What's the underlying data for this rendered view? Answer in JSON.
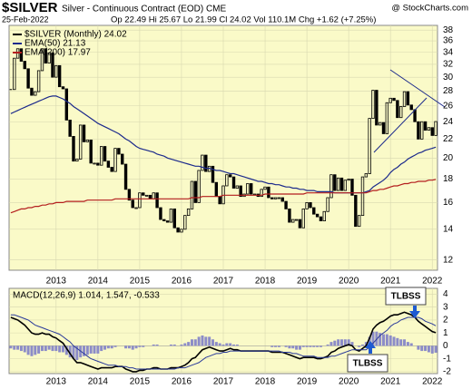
{
  "chart_data": [
    {
      "type": "candlestick",
      "title": "$SILVER",
      "subtitle": "Silver - Continuous Contract (EOD) CME",
      "date": "25-Feb-2022",
      "quote": "Op 22.49 Hi 25.67 Lo 21.99 Cl 24.02 Vol 110.1M Chg +1.62 (+7.25%)",
      "credit": "@ StockCharts.com",
      "log_scale": true,
      "ylim": [
        11.4,
        38.9
      ],
      "yticks": [
        12,
        14,
        16,
        18,
        20,
        22,
        24,
        26,
        28,
        30,
        32,
        34,
        36,
        38
      ],
      "categories": [
        null,
        null,
        null,
        null,
        null,
        null,
        null,
        null,
        null,
        null,
        null,
        null,
        null,
        "2013",
        null,
        null,
        null,
        null,
        null,
        null,
        null,
        null,
        null,
        null,
        null,
        "2014",
        null,
        null,
        null,
        null,
        null,
        null,
        null,
        null,
        null,
        null,
        null,
        "2015",
        null,
        null,
        null,
        null,
        null,
        null,
        null,
        null,
        null,
        null,
        null,
        "2016",
        null,
        null,
        null,
        null,
        null,
        null,
        null,
        null,
        null,
        null,
        null,
        "2017",
        null,
        null,
        null,
        null,
        null,
        null,
        null,
        null,
        null,
        null,
        null,
        "2018",
        null,
        null,
        null,
        null,
        null,
        null,
        null,
        null,
        null,
        null,
        null,
        "2019",
        null,
        null,
        null,
        null,
        null,
        null,
        null,
        null,
        null,
        null,
        null,
        "2020",
        null,
        null,
        null,
        null,
        null,
        null,
        null,
        null,
        null,
        null,
        null,
        "2021",
        null,
        null,
        null,
        null,
        null,
        null,
        null,
        null,
        null,
        null,
        null,
        "2022",
        null
      ],
      "series": [
        {
          "name": "$SILVER (Monthly) 24.02",
          "color": "#000000",
          "values": [
            28.2,
            33.0,
            34.6,
            32.5,
            31.3,
            28.4,
            27.4,
            27.9,
            31.0,
            34.6,
            32.2,
            33.9,
            30.0,
            31.8,
            28.6,
            28.3,
            24.2,
            22.3,
            19.7,
            19.9,
            23.6,
            21.7,
            21.9,
            19.5,
            19.5,
            19.3,
            21.2,
            19.7,
            19.1,
            18.7,
            21.0,
            20.4,
            19.4,
            17.1,
            16.2,
            15.6,
            15.6,
            16.8,
            16.6,
            16.6,
            16.3,
            16.8,
            15.6,
            14.7,
            14.6,
            14.5,
            15.5,
            14.1,
            13.8,
            14.0,
            15.0,
            15.5,
            17.8,
            16.0,
            18.8,
            20.3,
            18.7,
            19.2,
            17.7,
            16.5,
            15.9,
            17.4,
            18.4,
            18.2,
            17.2,
            17.4,
            16.5,
            16.7,
            17.6,
            16.7,
            16.7,
            16.5,
            17.1,
            17.3,
            16.4,
            16.3,
            16.4,
            16.4,
            16.1,
            15.5,
            14.5,
            14.7,
            14.7,
            14.1,
            15.5,
            16.0,
            15.6,
            15.1,
            14.9,
            14.6,
            15.3,
            16.4,
            18.4,
            17.0,
            18.1,
            17.0,
            17.9,
            18.0,
            16.6,
            14.2,
            15.0,
            18.2,
            18.5,
            24.4,
            28.1,
            23.6,
            23.9,
            22.6,
            26.4,
            27.0,
            26.7,
            24.5,
            25.9,
            27.9,
            26.1,
            25.5,
            24.0,
            22.0,
            24.0,
            23.0,
            23.3,
            22.4,
            24.02
          ]
        },
        {
          "name": "EMA(50) 21.13",
          "color": "#1c2a8c",
          "values": [
            25.0,
            25.2,
            25.4,
            25.6,
            25.8,
            26.0,
            26.2,
            26.4,
            26.6,
            26.8,
            27.0,
            27.2,
            27.3,
            27.3,
            27.1,
            26.9,
            26.6,
            26.3,
            25.9,
            25.6,
            25.3,
            25.0,
            24.7,
            24.4,
            24.1,
            23.8,
            23.6,
            23.4,
            23.2,
            23.0,
            22.8,
            22.6,
            22.3,
            22.0,
            21.8,
            21.5,
            21.2,
            21.0,
            20.9,
            20.8,
            20.7,
            20.6,
            20.4,
            20.3,
            20.2,
            20.0,
            19.9,
            19.8,
            19.7,
            19.6,
            19.5,
            19.4,
            19.3,
            19.2,
            19.2,
            19.1,
            19.0,
            19.0,
            18.9,
            18.8,
            18.8,
            18.7,
            18.6,
            18.5,
            18.5,
            18.4,
            18.3,
            18.2,
            18.1,
            18.0,
            17.9,
            17.8,
            17.8,
            17.7,
            17.6,
            17.6,
            17.5,
            17.5,
            17.4,
            17.3,
            17.3,
            17.2,
            17.2,
            17.1,
            17.1,
            17.0,
            17.0,
            17.0,
            16.9,
            16.9,
            16.9,
            16.9,
            16.9,
            16.8,
            16.8,
            16.8,
            16.8,
            16.8,
            16.8,
            16.8,
            16.8,
            16.8,
            16.9,
            17.0,
            17.3,
            17.5,
            17.7,
            17.9,
            18.2,
            18.6,
            18.9,
            19.1,
            19.4,
            19.6,
            19.9,
            20.1,
            20.3,
            20.5,
            20.6,
            20.8,
            20.9,
            21.0,
            21.13
          ]
        },
        {
          "name": "EMA(200) 17.97",
          "color": "#b41e1e",
          "values": [
            15.2,
            15.3,
            15.4,
            15.5,
            15.5,
            15.6,
            15.6,
            15.7,
            15.7,
            15.8,
            15.8,
            15.9,
            15.9,
            16.0,
            16.0,
            16.0,
            16.1,
            16.1,
            16.1,
            16.1,
            16.1,
            16.1,
            16.2,
            16.2,
            16.2,
            16.2,
            16.2,
            16.2,
            16.2,
            16.2,
            16.3,
            16.3,
            16.3,
            16.3,
            16.3,
            16.3,
            16.3,
            16.3,
            16.3,
            16.3,
            16.3,
            16.3,
            16.3,
            16.3,
            16.3,
            16.3,
            16.3,
            16.3,
            16.3,
            16.3,
            16.3,
            16.3,
            16.4,
            16.4,
            16.4,
            16.5,
            16.5,
            16.5,
            16.5,
            16.5,
            16.5,
            16.6,
            16.6,
            16.6,
            16.6,
            16.6,
            16.6,
            16.6,
            16.6,
            16.6,
            16.6,
            16.6,
            16.6,
            16.7,
            16.7,
            16.7,
            16.7,
            16.7,
            16.7,
            16.7,
            16.7,
            16.7,
            16.7,
            16.7,
            16.7,
            16.8,
            16.8,
            16.8,
            16.8,
            16.8,
            16.8,
            16.8,
            16.8,
            16.8,
            16.8,
            16.8,
            16.8,
            16.8,
            16.8,
            16.8,
            16.8,
            16.8,
            16.8,
            16.9,
            17.0,
            17.0,
            17.1,
            17.1,
            17.2,
            17.3,
            17.4,
            17.4,
            17.5,
            17.6,
            17.6,
            17.7,
            17.7,
            17.8,
            17.8,
            17.8,
            17.9,
            17.9,
            17.97
          ]
        }
      ]
    },
    {
      "type": "macd",
      "title": "MACD(12,26,9) 1.014, 1.547, -0.533",
      "ylim": [
        -2.15,
        4.45
      ],
      "yticks": [
        -2,
        -1,
        0,
        1,
        2,
        3,
        4
      ],
      "histogram_color": "#8c8cc8",
      "annotations": [
        "TLBSS",
        "TLBSS"
      ],
      "categories": [
        null,
        null,
        null,
        null,
        null,
        null,
        null,
        null,
        null,
        null,
        null,
        null,
        null,
        "2013",
        null,
        null,
        null,
        null,
        null,
        null,
        null,
        null,
        null,
        null,
        null,
        "2014",
        null,
        null,
        null,
        null,
        null,
        null,
        null,
        null,
        null,
        null,
        null,
        "2015",
        null,
        null,
        null,
        null,
        null,
        null,
        null,
        null,
        null,
        null,
        null,
        "2016",
        null,
        null,
        null,
        null,
        null,
        null,
        null,
        null,
        null,
        null,
        null,
        "2017",
        null,
        null,
        null,
        null,
        null,
        null,
        null,
        null,
        null,
        null,
        null,
        "2018",
        null,
        null,
        null,
        null,
        null,
        null,
        null,
        null,
        null,
        null,
        null,
        "2019",
        null,
        null,
        null,
        null,
        null,
        null,
        null,
        null,
        null,
        null,
        null,
        "2020",
        null,
        null,
        null,
        null,
        null,
        null,
        null,
        null,
        null,
        null,
        null,
        "2021",
        null,
        null,
        null,
        null,
        null,
        null,
        null,
        null,
        null,
        null,
        null,
        "2022",
        null
      ],
      "series": [
        {
          "color": "#000000",
          "values": [
            2.2,
            2.1,
            2.0,
            1.8,
            1.6,
            1.3,
            1.0,
            0.9,
            0.9,
            1.0,
            0.9,
            0.9,
            0.7,
            0.6,
            0.4,
            0.2,
            -0.2,
            -0.6,
            -1.0,
            -1.3,
            -1.3,
            -1.4,
            -1.5,
            -1.6,
            -1.7,
            -1.8,
            -1.7,
            -1.7,
            -1.7,
            -1.7,
            -1.6,
            -1.6,
            -1.6,
            -1.8,
            -1.9,
            -2.0,
            -2.0,
            -1.9,
            -1.9,
            -1.8,
            -1.8,
            -1.7,
            -1.7,
            -1.8,
            -1.8,
            -1.8,
            -1.7,
            -1.7,
            -1.7,
            -1.6,
            -1.5,
            -1.3,
            -1.0,
            -0.9,
            -0.6,
            -0.3,
            -0.2,
            -0.1,
            -0.2,
            -0.3,
            -0.4,
            -0.4,
            -0.3,
            -0.2,
            -0.3,
            -0.3,
            -0.4,
            -0.4,
            -0.4,
            -0.4,
            -0.4,
            -0.4,
            -0.4,
            -0.4,
            -0.4,
            -0.5,
            -0.5,
            -0.5,
            -0.5,
            -0.6,
            -0.7,
            -0.8,
            -0.9,
            -1.0,
            -0.9,
            -0.9,
            -0.9,
            -0.9,
            -1.0,
            -1.0,
            -0.9,
            -0.8,
            -0.5,
            -0.4,
            -0.2,
            -0.1,
            0.0,
            0.1,
            0.0,
            -0.3,
            -0.4,
            -0.2,
            0.0,
            0.6,
            1.3,
            1.6,
            1.8,
            1.9,
            2.1,
            2.3,
            2.4,
            2.4,
            2.5,
            2.6,
            2.5,
            2.4,
            2.2,
            1.9,
            1.7,
            1.5,
            1.3,
            1.1,
            1.014
          ]
        },
        {
          "color": "#2a3a9a",
          "values": [
            2.4,
            2.4,
            2.3,
            2.2,
            2.1,
            2.0,
            1.8,
            1.6,
            1.5,
            1.4,
            1.3,
            1.2,
            1.1,
            1.0,
            0.9,
            0.7,
            0.5,
            0.3,
            0.0,
            -0.2,
            -0.4,
            -0.6,
            -0.8,
            -1.0,
            -1.1,
            -1.2,
            -1.3,
            -1.4,
            -1.5,
            -1.5,
            -1.5,
            -1.6,
            -1.6,
            -1.6,
            -1.7,
            -1.7,
            -1.8,
            -1.8,
            -1.8,
            -1.8,
            -1.8,
            -1.8,
            -1.8,
            -1.8,
            -1.8,
            -1.8,
            -1.8,
            -1.8,
            -1.7,
            -1.7,
            -1.7,
            -1.6,
            -1.5,
            -1.4,
            -1.3,
            -1.1,
            -0.9,
            -0.8,
            -0.7,
            -0.6,
            -0.6,
            -0.5,
            -0.5,
            -0.4,
            -0.4,
            -0.4,
            -0.4,
            -0.4,
            -0.4,
            -0.4,
            -0.4,
            -0.4,
            -0.4,
            -0.4,
            -0.4,
            -0.4,
            -0.4,
            -0.4,
            -0.5,
            -0.5,
            -0.5,
            -0.6,
            -0.6,
            -0.7,
            -0.8,
            -0.8,
            -0.8,
            -0.8,
            -0.9,
            -0.9,
            -0.9,
            -0.9,
            -0.8,
            -0.8,
            -0.7,
            -0.6,
            -0.5,
            -0.4,
            -0.3,
            -0.3,
            -0.3,
            -0.3,
            -0.3,
            -0.1,
            0.2,
            0.5,
            0.8,
            1.0,
            1.2,
            1.5,
            1.7,
            1.8,
            2.0,
            2.1,
            2.2,
            2.2,
            2.2,
            2.2,
            2.1,
            1.9,
            1.8,
            1.7,
            1.547
          ]
        }
      ]
    }
  ]
}
